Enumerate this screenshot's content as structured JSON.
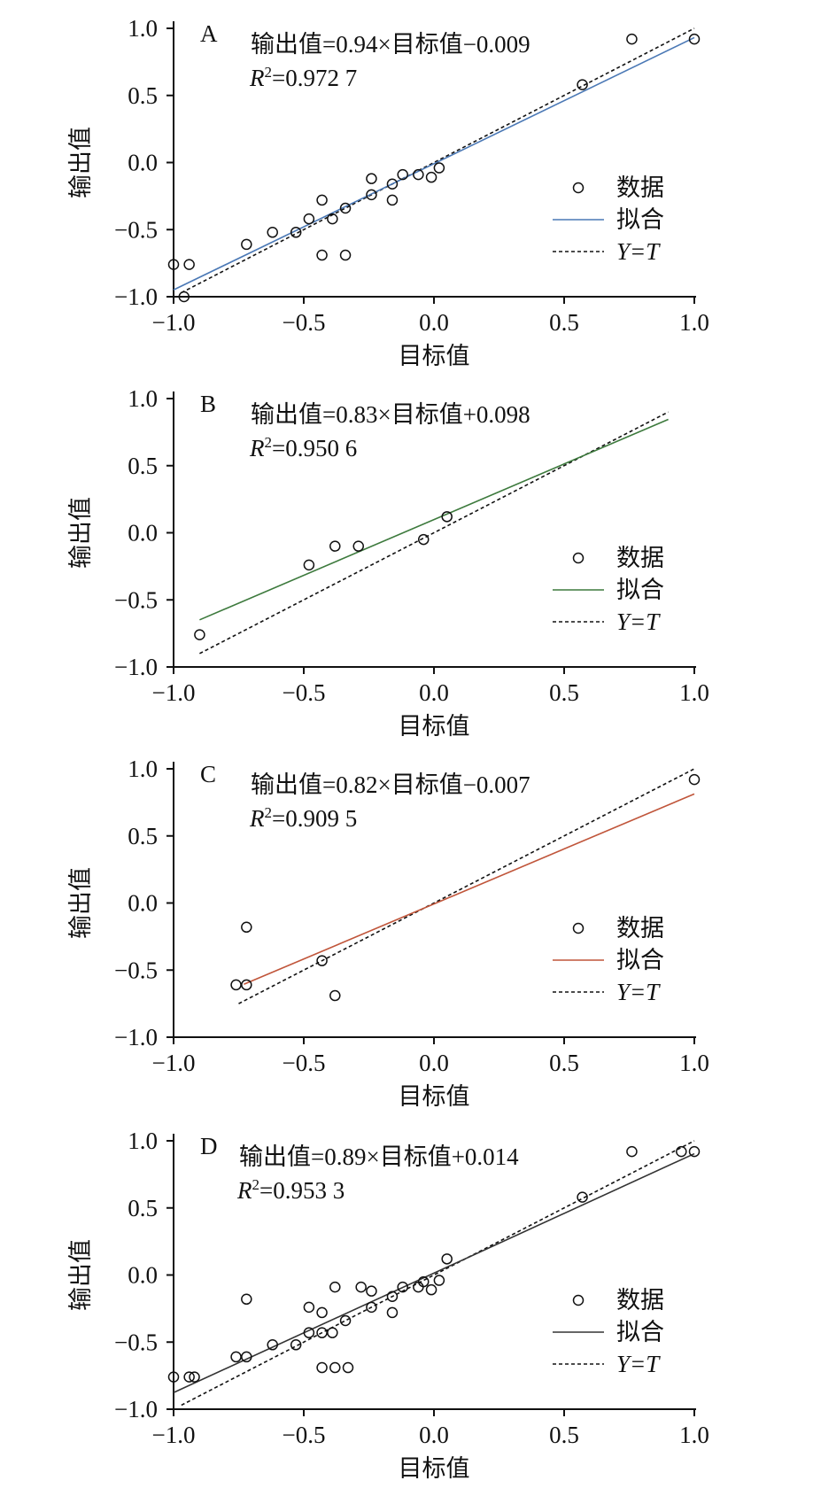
{
  "figure": {
    "charts_count": 4
  },
  "chart_data": [
    {
      "type": "scatter",
      "panel": "A",
      "equation": "输出值=0.94×目标值−0.009",
      "r2_label": "R",
      "r2_sup": "2",
      "r2_value": "=0.972 7",
      "xlabel": "目标值",
      "ylabel": "输出值",
      "xlim": [
        -1.0,
        1.0
      ],
      "ylim": [
        -1.0,
        1.0
      ],
      "xticks": [
        -1.0,
        -0.5,
        0.0,
        0.5,
        1.0
      ],
      "yticks": [
        -1.0,
        -0.5,
        0.0,
        0.5,
        1.0
      ],
      "xtick_labels": [
        "−1.0",
        "−0.5",
        "0.0",
        "0.5",
        "1.0"
      ],
      "ytick_labels": [
        "−1.0",
        "−0.5",
        "0.0",
        "0.5",
        "1.0"
      ],
      "fit": {
        "slope": 0.94,
        "intercept": -0.009,
        "x_range": [
          -1.0,
          1.0
        ],
        "color": "#4a78b5"
      },
      "identity": {
        "x_range": [
          -0.97,
          1.0
        ]
      },
      "legend": {
        "placement": "right",
        "items": [
          "数据",
          "拟合",
          "Y=T"
        ]
      },
      "points": [
        [
          -1.0,
          -0.76
        ],
        [
          -0.94,
          -0.76
        ],
        [
          -0.96,
          -1.0
        ],
        [
          -0.72,
          -0.61
        ],
        [
          -0.62,
          -0.52
        ],
        [
          -0.53,
          -0.52
        ],
        [
          -0.48,
          -0.42
        ],
        [
          -0.43,
          -0.28
        ],
        [
          -0.43,
          -0.69
        ],
        [
          -0.39,
          -0.42
        ],
        [
          -0.34,
          -0.34
        ],
        [
          -0.34,
          -0.69
        ],
        [
          -0.24,
          -0.12
        ],
        [
          -0.24,
          -0.24
        ],
        [
          -0.16,
          -0.16
        ],
        [
          -0.16,
          -0.28
        ],
        [
          -0.12,
          -0.09
        ],
        [
          -0.06,
          -0.09
        ],
        [
          -0.01,
          -0.11
        ],
        [
          0.02,
          -0.04
        ],
        [
          0.57,
          0.58
        ],
        [
          0.76,
          0.92
        ],
        [
          1.0,
          0.92
        ]
      ]
    },
    {
      "type": "scatter",
      "panel": "B",
      "equation": "输出值=0.83×目标值+0.098",
      "r2_label": "R",
      "r2_sup": "2",
      "r2_value": "=0.950 6",
      "xlabel": "目标值",
      "ylabel": "输出值",
      "xlim": [
        -1.0,
        1.0
      ],
      "ylim": [
        -1.0,
        1.0
      ],
      "xticks": [
        -1.0,
        -0.5,
        0.0,
        0.5,
        1.0
      ],
      "yticks": [
        -1.0,
        -0.5,
        0.0,
        0.5,
        1.0
      ],
      "xtick_labels": [
        "−1.0",
        "−0.5",
        "0.0",
        "0.5",
        "1.0"
      ],
      "ytick_labels": [
        "−1.0",
        "−0.5",
        "0.0",
        "0.5",
        "1.0"
      ],
      "fit": {
        "slope": 0.83,
        "intercept": 0.098,
        "x_range": [
          -0.9,
          0.9
        ],
        "color": "#3d7a3d"
      },
      "identity": {
        "x_range": [
          -0.9,
          0.9
        ]
      },
      "legend": {
        "placement": "right",
        "items": [
          "数据",
          "拟合",
          "Y=T"
        ]
      },
      "points": [
        [
          -0.9,
          -0.76
        ],
        [
          -0.48,
          -0.24
        ],
        [
          -0.38,
          -0.1
        ],
        [
          -0.29,
          -0.1
        ],
        [
          -0.04,
          -0.05
        ],
        [
          0.05,
          0.12
        ]
      ]
    },
    {
      "type": "scatter",
      "panel": "C",
      "equation": "输出值=0.82×目标值−0.007",
      "r2_label": "R",
      "r2_sup": "2",
      "r2_value": "=0.909 5",
      "xlabel": "目标值",
      "ylabel": "输出值",
      "xlim": [
        -1.0,
        1.0
      ],
      "ylim": [
        -1.0,
        1.0
      ],
      "xticks": [
        -1.0,
        -0.5,
        0.0,
        0.5,
        1.0
      ],
      "yticks": [
        -1.0,
        -0.5,
        0.0,
        0.5,
        1.0
      ],
      "xtick_labels": [
        "−1.0",
        "−0.5",
        "0.0",
        "0.5",
        "1.0"
      ],
      "ytick_labels": [
        "−1.0",
        "−0.5",
        "0.0",
        "0.5",
        "1.0"
      ],
      "fit": {
        "slope": 0.82,
        "intercept": -0.007,
        "x_range": [
          -0.73,
          1.0
        ],
        "color": "#c0553a"
      },
      "identity": {
        "x_range": [
          -0.75,
          1.0
        ]
      },
      "legend": {
        "placement": "right",
        "items": [
          "数据",
          "拟合",
          "Y=T"
        ]
      },
      "points": [
        [
          -0.76,
          -0.61
        ],
        [
          -0.72,
          -0.61
        ],
        [
          -0.72,
          -0.18
        ],
        [
          -0.43,
          -0.43
        ],
        [
          -0.38,
          -0.69
        ],
        [
          1.0,
          0.92
        ]
      ]
    },
    {
      "type": "scatter",
      "panel": "D",
      "equation": "输出值=0.89×目标值+0.014",
      "r2_label": "R",
      "r2_sup": "2",
      "r2_value": "=0.953 3",
      "xlabel": "目标值",
      "ylabel": "输出值",
      "xlim": [
        -1.0,
        1.0
      ],
      "ylim": [
        -1.0,
        1.0
      ],
      "xticks": [
        -1.0,
        -0.5,
        0.0,
        0.5,
        1.0
      ],
      "yticks": [
        -1.0,
        -0.5,
        0.0,
        0.5,
        1.0
      ],
      "xtick_labels": [
        "−1.0",
        "−0.5",
        "0.0",
        "0.5",
        "1.0"
      ],
      "ytick_labels": [
        "−1.0",
        "−0.5",
        "0.0",
        "0.5",
        "1.0"
      ],
      "fit": {
        "slope": 0.89,
        "intercept": 0.014,
        "x_range": [
          -1.0,
          1.0
        ],
        "color": "#333333"
      },
      "identity": {
        "x_range": [
          -0.97,
          1.0
        ]
      },
      "legend": {
        "placement": "right",
        "items": [
          "数据",
          "拟合",
          "Y=T"
        ]
      },
      "points": [
        [
          -1.0,
          -0.76
        ],
        [
          -0.94,
          -0.76
        ],
        [
          -0.92,
          -0.76
        ],
        [
          -0.76,
          -0.61
        ],
        [
          -0.72,
          -0.61
        ],
        [
          -0.72,
          -0.18
        ],
        [
          -0.62,
          -0.52
        ],
        [
          -0.53,
          -0.52
        ],
        [
          -0.48,
          -0.24
        ],
        [
          -0.48,
          -0.43
        ],
        [
          -0.43,
          -0.28
        ],
        [
          -0.43,
          -0.43
        ],
        [
          -0.43,
          -0.69
        ],
        [
          -0.39,
          -0.43
        ],
        [
          -0.38,
          -0.09
        ],
        [
          -0.38,
          -0.69
        ],
        [
          -0.34,
          -0.34
        ],
        [
          -0.33,
          -0.69
        ],
        [
          -0.28,
          -0.09
        ],
        [
          -0.24,
          -0.12
        ],
        [
          -0.24,
          -0.24
        ],
        [
          -0.16,
          -0.16
        ],
        [
          -0.16,
          -0.28
        ],
        [
          -0.12,
          -0.09
        ],
        [
          -0.06,
          -0.09
        ],
        [
          -0.04,
          -0.05
        ],
        [
          -0.01,
          -0.11
        ],
        [
          0.02,
          -0.04
        ],
        [
          0.05,
          0.12
        ],
        [
          0.57,
          0.58
        ],
        [
          0.76,
          0.92
        ],
        [
          0.95,
          0.92
        ],
        [
          1.0,
          0.92
        ]
      ]
    }
  ]
}
